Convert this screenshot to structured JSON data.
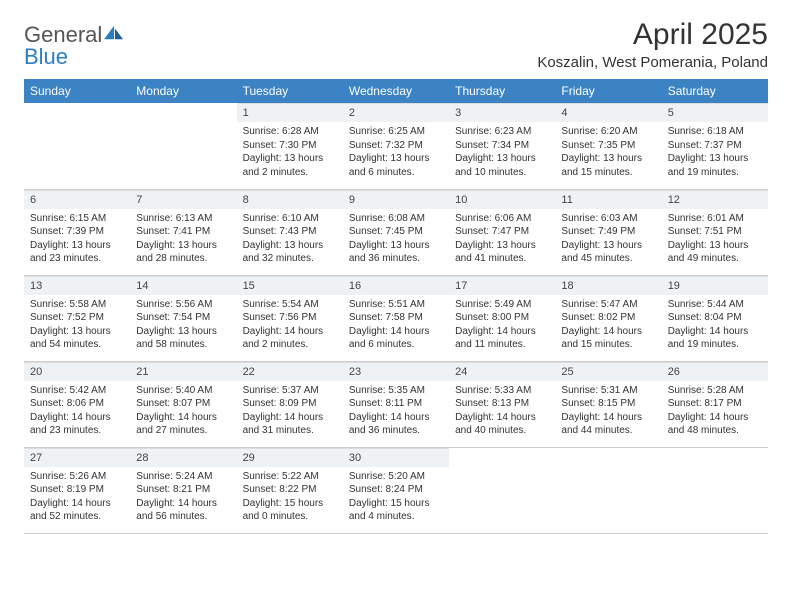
{
  "brand": {
    "word1": "General",
    "word2": "Blue"
  },
  "title": "April 2025",
  "location": "Koszalin, West Pomerania, Poland",
  "colors": {
    "header_bg": "#3b83c2",
    "header_fg": "#ffffff",
    "daynum_bg": "#eef2f5",
    "border": "#cccccc",
    "text": "#333333",
    "brand_gray": "#555555",
    "brand_blue": "#2d7cc0"
  },
  "weekdays": [
    "Sunday",
    "Monday",
    "Tuesday",
    "Wednesday",
    "Thursday",
    "Friday",
    "Saturday"
  ],
  "weeks": [
    [
      {
        "n": "",
        "sr": "",
        "ss": "",
        "dl": "",
        "empty": true
      },
      {
        "n": "",
        "sr": "",
        "ss": "",
        "dl": "",
        "empty": true
      },
      {
        "n": "1",
        "sr": "Sunrise: 6:28 AM",
        "ss": "Sunset: 7:30 PM",
        "dl": "Daylight: 13 hours and 2 minutes."
      },
      {
        "n": "2",
        "sr": "Sunrise: 6:25 AM",
        "ss": "Sunset: 7:32 PM",
        "dl": "Daylight: 13 hours and 6 minutes."
      },
      {
        "n": "3",
        "sr": "Sunrise: 6:23 AM",
        "ss": "Sunset: 7:34 PM",
        "dl": "Daylight: 13 hours and 10 minutes."
      },
      {
        "n": "4",
        "sr": "Sunrise: 6:20 AM",
        "ss": "Sunset: 7:35 PM",
        "dl": "Daylight: 13 hours and 15 minutes."
      },
      {
        "n": "5",
        "sr": "Sunrise: 6:18 AM",
        "ss": "Sunset: 7:37 PM",
        "dl": "Daylight: 13 hours and 19 minutes."
      }
    ],
    [
      {
        "n": "6",
        "sr": "Sunrise: 6:15 AM",
        "ss": "Sunset: 7:39 PM",
        "dl": "Daylight: 13 hours and 23 minutes."
      },
      {
        "n": "7",
        "sr": "Sunrise: 6:13 AM",
        "ss": "Sunset: 7:41 PM",
        "dl": "Daylight: 13 hours and 28 minutes."
      },
      {
        "n": "8",
        "sr": "Sunrise: 6:10 AM",
        "ss": "Sunset: 7:43 PM",
        "dl": "Daylight: 13 hours and 32 minutes."
      },
      {
        "n": "9",
        "sr": "Sunrise: 6:08 AM",
        "ss": "Sunset: 7:45 PM",
        "dl": "Daylight: 13 hours and 36 minutes."
      },
      {
        "n": "10",
        "sr": "Sunrise: 6:06 AM",
        "ss": "Sunset: 7:47 PM",
        "dl": "Daylight: 13 hours and 41 minutes."
      },
      {
        "n": "11",
        "sr": "Sunrise: 6:03 AM",
        "ss": "Sunset: 7:49 PM",
        "dl": "Daylight: 13 hours and 45 minutes."
      },
      {
        "n": "12",
        "sr": "Sunrise: 6:01 AM",
        "ss": "Sunset: 7:51 PM",
        "dl": "Daylight: 13 hours and 49 minutes."
      }
    ],
    [
      {
        "n": "13",
        "sr": "Sunrise: 5:58 AM",
        "ss": "Sunset: 7:52 PM",
        "dl": "Daylight: 13 hours and 54 minutes."
      },
      {
        "n": "14",
        "sr": "Sunrise: 5:56 AM",
        "ss": "Sunset: 7:54 PM",
        "dl": "Daylight: 13 hours and 58 minutes."
      },
      {
        "n": "15",
        "sr": "Sunrise: 5:54 AM",
        "ss": "Sunset: 7:56 PM",
        "dl": "Daylight: 14 hours and 2 minutes."
      },
      {
        "n": "16",
        "sr": "Sunrise: 5:51 AM",
        "ss": "Sunset: 7:58 PM",
        "dl": "Daylight: 14 hours and 6 minutes."
      },
      {
        "n": "17",
        "sr": "Sunrise: 5:49 AM",
        "ss": "Sunset: 8:00 PM",
        "dl": "Daylight: 14 hours and 11 minutes."
      },
      {
        "n": "18",
        "sr": "Sunrise: 5:47 AM",
        "ss": "Sunset: 8:02 PM",
        "dl": "Daylight: 14 hours and 15 minutes."
      },
      {
        "n": "19",
        "sr": "Sunrise: 5:44 AM",
        "ss": "Sunset: 8:04 PM",
        "dl": "Daylight: 14 hours and 19 minutes."
      }
    ],
    [
      {
        "n": "20",
        "sr": "Sunrise: 5:42 AM",
        "ss": "Sunset: 8:06 PM",
        "dl": "Daylight: 14 hours and 23 minutes."
      },
      {
        "n": "21",
        "sr": "Sunrise: 5:40 AM",
        "ss": "Sunset: 8:07 PM",
        "dl": "Daylight: 14 hours and 27 minutes."
      },
      {
        "n": "22",
        "sr": "Sunrise: 5:37 AM",
        "ss": "Sunset: 8:09 PM",
        "dl": "Daylight: 14 hours and 31 minutes."
      },
      {
        "n": "23",
        "sr": "Sunrise: 5:35 AM",
        "ss": "Sunset: 8:11 PM",
        "dl": "Daylight: 14 hours and 36 minutes."
      },
      {
        "n": "24",
        "sr": "Sunrise: 5:33 AM",
        "ss": "Sunset: 8:13 PM",
        "dl": "Daylight: 14 hours and 40 minutes."
      },
      {
        "n": "25",
        "sr": "Sunrise: 5:31 AM",
        "ss": "Sunset: 8:15 PM",
        "dl": "Daylight: 14 hours and 44 minutes."
      },
      {
        "n": "26",
        "sr": "Sunrise: 5:28 AM",
        "ss": "Sunset: 8:17 PM",
        "dl": "Daylight: 14 hours and 48 minutes."
      }
    ],
    [
      {
        "n": "27",
        "sr": "Sunrise: 5:26 AM",
        "ss": "Sunset: 8:19 PM",
        "dl": "Daylight: 14 hours and 52 minutes."
      },
      {
        "n": "28",
        "sr": "Sunrise: 5:24 AM",
        "ss": "Sunset: 8:21 PM",
        "dl": "Daylight: 14 hours and 56 minutes."
      },
      {
        "n": "29",
        "sr": "Sunrise: 5:22 AM",
        "ss": "Sunset: 8:22 PM",
        "dl": "Daylight: 15 hours and 0 minutes."
      },
      {
        "n": "30",
        "sr": "Sunrise: 5:20 AM",
        "ss": "Sunset: 8:24 PM",
        "dl": "Daylight: 15 hours and 4 minutes."
      },
      {
        "n": "",
        "sr": "",
        "ss": "",
        "dl": "",
        "empty": true
      },
      {
        "n": "",
        "sr": "",
        "ss": "",
        "dl": "",
        "empty": true
      },
      {
        "n": "",
        "sr": "",
        "ss": "",
        "dl": "",
        "empty": true
      }
    ]
  ]
}
